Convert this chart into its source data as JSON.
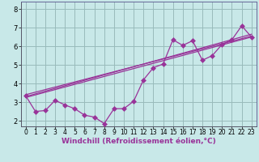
{
  "xlabel": "Windchill (Refroidissement éolien,°C)",
  "xlim": [
    -0.5,
    23.5
  ],
  "ylim": [
    1.7,
    8.4
  ],
  "xticks": [
    0,
    1,
    2,
    3,
    4,
    5,
    6,
    7,
    8,
    9,
    10,
    11,
    12,
    13,
    14,
    15,
    16,
    17,
    18,
    19,
    20,
    21,
    22,
    23
  ],
  "yticks": [
    2,
    3,
    4,
    5,
    6,
    7,
    8
  ],
  "bg_color": "#c8e8e8",
  "line_color": "#993399",
  "grid_color": "#99bbbb",
  "data_x": [
    0,
    1,
    2,
    3,
    4,
    5,
    6,
    7,
    8,
    9,
    10,
    11,
    12,
    13,
    14,
    15,
    16,
    17,
    18,
    19,
    20,
    21,
    22,
    23
  ],
  "data_y": [
    3.35,
    2.5,
    2.55,
    3.1,
    2.85,
    2.65,
    2.3,
    2.2,
    1.85,
    2.65,
    2.65,
    3.05,
    4.2,
    4.85,
    5.05,
    6.35,
    6.05,
    6.3,
    5.25,
    5.5,
    6.1,
    6.35,
    7.1,
    6.5
  ],
  "reg_lines": [
    {
      "x0": 0,
      "y0": 3.25,
      "x1": 23,
      "y1": 6.5
    },
    {
      "x0": 0,
      "y0": 3.4,
      "x1": 23,
      "y1": 6.55
    },
    {
      "x0": 0,
      "y0": 3.3,
      "x1": 23,
      "y1": 6.65
    }
  ],
  "spine_color": "#666699",
  "xlabel_color": "#993399",
  "xlabel_fontsize": 6.5,
  "tick_fontsize": 5.5
}
